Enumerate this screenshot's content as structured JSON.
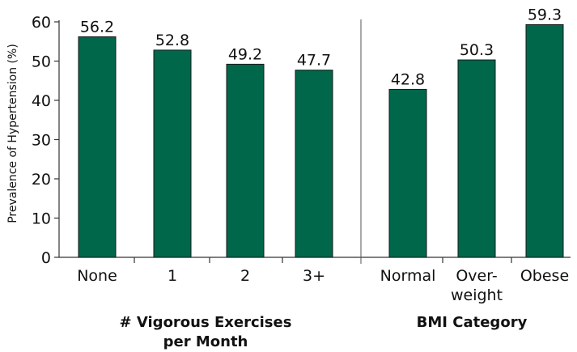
{
  "chart_data": {
    "type": "bar",
    "ylabel": "Prevalence of Hypertension (%)",
    "ylim": [
      0,
      60
    ],
    "yticks": [
      0,
      10,
      20,
      30,
      40,
      50,
      60
    ],
    "bar_color": "#00674a",
    "groups": [
      {
        "title_lines": [
          "# Vigorous Exercises",
          "per Month"
        ],
        "categories": [
          [
            "None"
          ],
          [
            "1"
          ],
          [
            "2"
          ],
          [
            "3+"
          ]
        ],
        "values": [
          56.2,
          52.8,
          49.2,
          47.7
        ],
        "value_labels": [
          "56.2",
          "52.8",
          "49.2",
          "47.7"
        ]
      },
      {
        "title_lines": [
          "BMI Category"
        ],
        "categories": [
          [
            "Normal"
          ],
          [
            "Over-",
            "weight"
          ],
          [
            "Obese"
          ]
        ],
        "values": [
          42.8,
          50.3,
          59.3
        ],
        "value_labels": [
          "42.8",
          "50.3",
          "59.3"
        ]
      }
    ],
    "grid": false,
    "legend": "none"
  }
}
